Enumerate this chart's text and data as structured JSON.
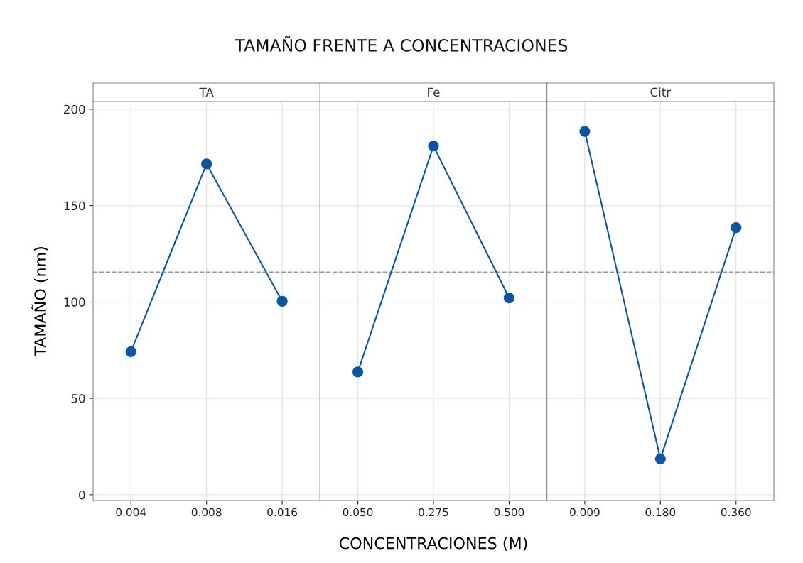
{
  "chart_data": [
    {
      "type": "line",
      "title": "TAMAÑO FRENTE A CONCENTRACIONES",
      "subtitle": "TA",
      "ylabel": "TAMAÑO (nm)",
      "categories": [
        "0.004",
        "0.008",
        "0.016"
      ],
      "series": [
        {
          "color": "#0b55a8",
          "values": [
            74.2,
            171.6,
            100.4
          ]
        }
      ],
      "ylim": [
        -3,
        204
      ],
      "yticks": [
        0,
        50,
        100,
        150,
        200
      ],
      "grid": true,
      "marker": "circle",
      "line_style": "solid",
      "ref_lines": [
        {
          "axis": "y",
          "value": 115.5,
          "color": "#999999",
          "line_style": "dashed"
        }
      ]
    },
    {
      "type": "line",
      "subtitle": "Fe",
      "xlabel": "CONCENTRACIONES (M)",
      "categories": [
        "0.050",
        "0.275",
        "0.500"
      ],
      "series": [
        {
          "color": "#0b55a8",
          "values": [
            63.7,
            180.9,
            102.1
          ]
        }
      ],
      "ylim": [
        -3,
        204
      ],
      "yticks": [
        0,
        50,
        100,
        150,
        200
      ],
      "grid": true,
      "marker": "circle",
      "line_style": "solid",
      "tick_labels": "x",
      "ref_lines": [
        {
          "axis": "y",
          "value": 115.5,
          "color": "#999999",
          "line_style": "dashed"
        }
      ]
    },
    {
      "type": "line",
      "subtitle": "Citr",
      "categories": [
        "0.009",
        "0.180",
        "0.360"
      ],
      "series": [
        {
          "color": "#0b55a8",
          "values": [
            188.5,
            18.6,
            138.6
          ]
        }
      ],
      "ylim": [
        -3,
        204
      ],
      "yticks": [
        0,
        50,
        100,
        150,
        200
      ],
      "grid": true,
      "marker": "circle",
      "line_style": "solid",
      "tick_labels": "x",
      "ref_lines": [
        {
          "axis": "y",
          "value": 115.5,
          "color": "#999999",
          "line_style": "dashed"
        }
      ]
    }
  ]
}
